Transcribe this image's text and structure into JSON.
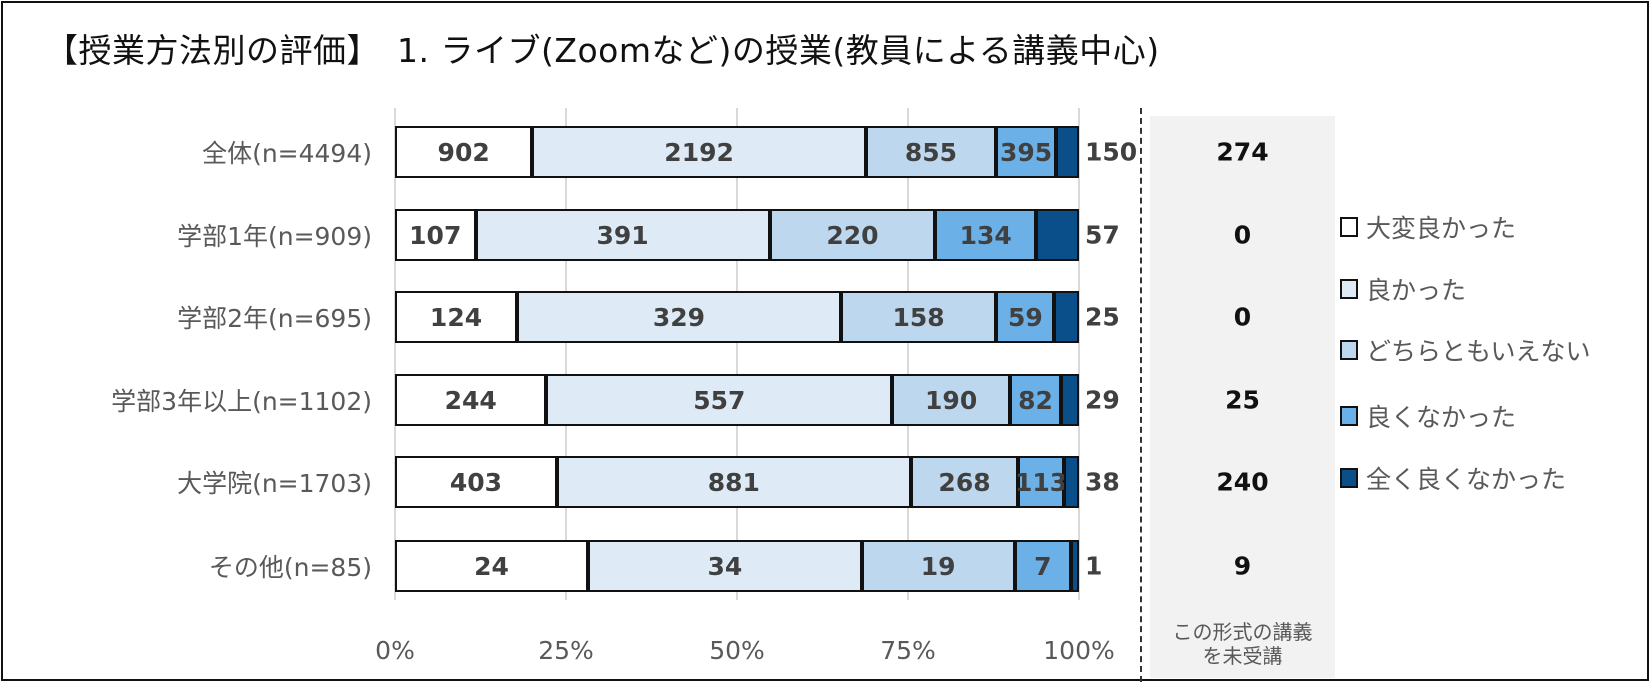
{
  "chart_data": {
    "type": "bar",
    "orientation": "horizontal",
    "stacked": "100%",
    "title": "【授業方法別の評価】　1. ライブ(Zoomなど)の授業(教員による講義中心)",
    "categories": [
      "全体(n=4494)",
      "学部1年(n=909)",
      "学部2年(n=695)",
      "学部3年以上(n=1102)",
      "大学院(n=1703)",
      "その他(n=85)"
    ],
    "series": [
      {
        "name": "大変良かった",
        "color": "#ffffff",
        "values": [
          902,
          107,
          124,
          244,
          403,
          24
        ]
      },
      {
        "name": "良かった",
        "color": "#deebf7",
        "values": [
          2192,
          391,
          329,
          557,
          881,
          34
        ]
      },
      {
        "name": "どちらともいえない",
        "color": "#bdd7ee",
        "values": [
          855,
          220,
          158,
          190,
          268,
          19
        ]
      },
      {
        "name": "良くなかった",
        "color": "#6cb0e8",
        "values": [
          395,
          134,
          59,
          82,
          113,
          7
        ]
      },
      {
        "name": "全く良くなかった",
        "color": "#0b4f8a",
        "values": [
          150,
          57,
          25,
          29,
          38,
          1
        ]
      }
    ],
    "x_ticks": [
      "0%",
      "25%",
      "50%",
      "75%",
      "100%"
    ],
    "xlim": [
      0,
      100
    ],
    "grid": true,
    "legend": "right",
    "not_attended": {
      "caption_line1": "この形式の講義",
      "caption_line2": "を未受講",
      "values": [
        274,
        0,
        0,
        25,
        240,
        9
      ]
    }
  }
}
